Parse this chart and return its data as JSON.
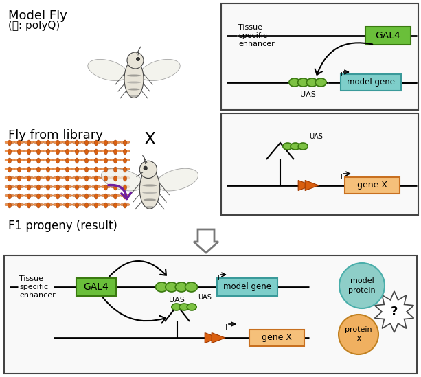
{
  "bg_color": "#ffffff",
  "gal4_color": "#6abf3a",
  "gal4_border": "#3a7a10",
  "model_gene_color": "#7ececa",
  "model_gene_border": "#3a9a9a",
  "gene_x_color": "#f5c07a",
  "gene_x_border": "#c87020",
  "uas_ellipse_color": "#7dc243",
  "uas_ellipse_border": "#3a7a10",
  "orange_arrow_color": "#d95f10",
  "orange_arrow_border": "#a03a00",
  "model_protein_color": "#8ecec8",
  "model_protein_border": "#4aaeaa",
  "protein_x_color": "#f0b060",
  "protein_x_border": "#c08020",
  "box_border": "#444444",
  "lib_fly_color": "#d96010",
  "purple_arrow": "#7020a0",
  "curve_arrow_color": "#111111",
  "line_lw": 2.0,
  "text_model_fly": "Model Fly",
  "text_polyq": "(예: polyQ)",
  "text_library": "Fly from library",
  "text_cross": "X",
  "text_f1": "F1 progeny (result)",
  "text_tissue": "Tissue\nspecific\nenhancer",
  "text_gal4": "GAL4",
  "text_model_gene": "model gene",
  "text_uas": "UAS",
  "text_gene_x": "gene X",
  "text_model_protein": "model\nprotein",
  "text_protein_x": "protein\nX",
  "text_question": "?"
}
